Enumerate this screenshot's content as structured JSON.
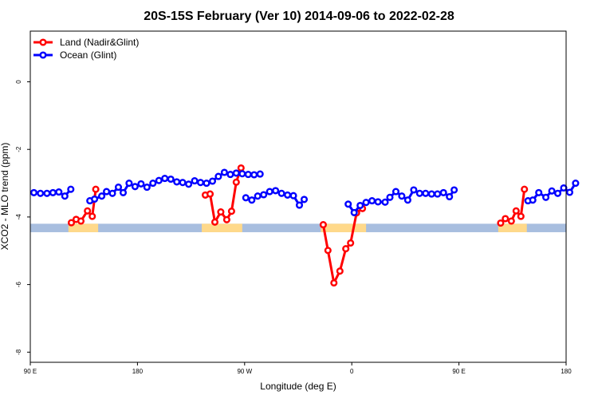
{
  "chart_data": {
    "type": "line",
    "title": "20S-15S February (Ver 10)   2014-09-06 to 2022-02-28",
    "xlabel": "Longitude (deg E)",
    "ylabel": "XCO2 - MLO trend (ppm)",
    "x_ticks": [
      "90 E",
      "180",
      "90 W",
      "0",
      "90 E",
      "180"
    ],
    "y_ticks": [
      "0",
      "-2",
      "-4",
      "-6",
      "-8"
    ],
    "xlim": [
      90,
      540
    ],
    "ylim": [
      -8.3,
      1.5
    ],
    "colors": {
      "land": "#ff0000",
      "ocean": "#0000ff",
      "land_mask": "#ffd98a",
      "ocean_mask": "#a8bedf"
    },
    "legend": [
      {
        "key": "land",
        "label": "Land (Nadir&Glint)"
      },
      {
        "key": "ocean",
        "label": "Ocean (Glint)"
      }
    ],
    "series": [
      {
        "key": "land",
        "name": "Land (Nadir&Glint)",
        "segments": [
          [
            [
              124.5,
              -4.17
            ],
            [
              128.5,
              -4.07
            ],
            [
              132.5,
              -4.12
            ],
            [
              138,
              -3.82
            ],
            [
              142,
              -3.98
            ],
            [
              145,
              -3.18
            ]
          ],
          [
            [
              237,
              -3.35
            ],
            [
              241,
              -3.32
            ],
            [
              245,
              -4.15
            ],
            [
              250,
              -3.85
            ],
            [
              255,
              -4.08
            ],
            [
              259,
              -3.83
            ],
            [
              263,
              -2.97
            ],
            [
              267,
              -2.55
            ]
          ],
          [
            [
              336,
              -4.23
            ],
            [
              340,
              -4.99
            ],
            [
              345,
              -5.95
            ],
            [
              350,
              -5.6
            ],
            [
              355,
              -4.94
            ],
            [
              359,
              -4.77
            ],
            [
              364,
              -3.88
            ],
            [
              369,
              -3.75
            ]
          ],
          [
            [
              485,
              -4.18
            ],
            [
              489,
              -4.05
            ],
            [
              494,
              -4.12
            ],
            [
              498,
              -3.82
            ],
            [
              502,
              -3.98
            ],
            [
              505,
              -3.18
            ]
          ]
        ]
      },
      {
        "key": "ocean",
        "name": "Ocean (Glint)",
        "segments": [
          [
            [
              93,
              -3.28
            ],
            [
              98.5,
              -3.3
            ],
            [
              104,
              -3.3
            ],
            [
              109,
              -3.28
            ],
            [
              114,
              -3.26
            ],
            [
              119,
              -3.38
            ],
            [
              124,
              -3.18
            ]
          ],
          [
            [
              140,
              -3.52
            ],
            [
              144,
              -3.47
            ],
            [
              150,
              -3.38
            ],
            [
              154,
              -3.25
            ],
            [
              159,
              -3.3
            ],
            [
              164,
              -3.12
            ],
            [
              168,
              -3.28
            ],
            [
              173,
              -3.0
            ],
            [
              178,
              -3.1
            ],
            [
              183,
              -3.02
            ],
            [
              188,
              -3.12
            ],
            [
              193,
              -3.0
            ],
            [
              198,
              -2.92
            ],
            [
              203,
              -2.86
            ],
            [
              208,
              -2.88
            ],
            [
              213,
              -2.96
            ],
            [
              218,
              -2.98
            ],
            [
              223,
              -3.03
            ],
            [
              228,
              -2.93
            ],
            [
              233,
              -2.98
            ],
            [
              238,
              -3.0
            ],
            [
              243,
              -2.94
            ],
            [
              248,
              -2.8
            ],
            [
              253,
              -2.68
            ],
            [
              258,
              -2.74
            ],
            [
              263,
              -2.7
            ],
            [
              268,
              -2.72
            ],
            [
              273,
              -2.74
            ],
            [
              278,
              -2.75
            ],
            [
              283,
              -2.73
            ]
          ],
          [
            [
              271,
              -3.43
            ],
            [
              276,
              -3.5
            ],
            [
              281,
              -3.38
            ],
            [
              286,
              -3.34
            ],
            [
              291,
              -3.25
            ],
            [
              296,
              -3.22
            ],
            [
              301,
              -3.3
            ],
            [
              306,
              -3.35
            ],
            [
              311,
              -3.37
            ],
            [
              316,
              -3.65
            ],
            [
              320,
              -3.48
            ]
          ],
          [
            [
              357,
              -3.62
            ],
            [
              362,
              -3.87
            ],
            [
              367,
              -3.66
            ],
            [
              372,
              -3.57
            ],
            [
              377,
              -3.52
            ],
            [
              382,
              -3.55
            ],
            [
              388,
              -3.56
            ],
            [
              392,
              -3.42
            ],
            [
              397,
              -3.25
            ],
            [
              402,
              -3.38
            ],
            [
              407,
              -3.5
            ],
            [
              412,
              -3.2
            ],
            [
              417,
              -3.3
            ],
            [
              422,
              -3.3
            ],
            [
              427,
              -3.32
            ],
            [
              432,
              -3.32
            ],
            [
              437,
              -3.28
            ],
            [
              442,
              -3.4
            ],
            [
              446,
              -3.2
            ]
          ],
          [
            [
              508,
              -3.52
            ],
            [
              512,
              -3.5
            ],
            [
              517,
              -3.28
            ],
            [
              523,
              -3.42
            ],
            [
              528,
              -3.23
            ],
            [
              533,
              -3.3
            ],
            [
              538,
              -3.14
            ],
            [
              543,
              -3.27
            ],
            [
              548,
              -3.0
            ]
          ]
        ]
      }
    ]
  }
}
